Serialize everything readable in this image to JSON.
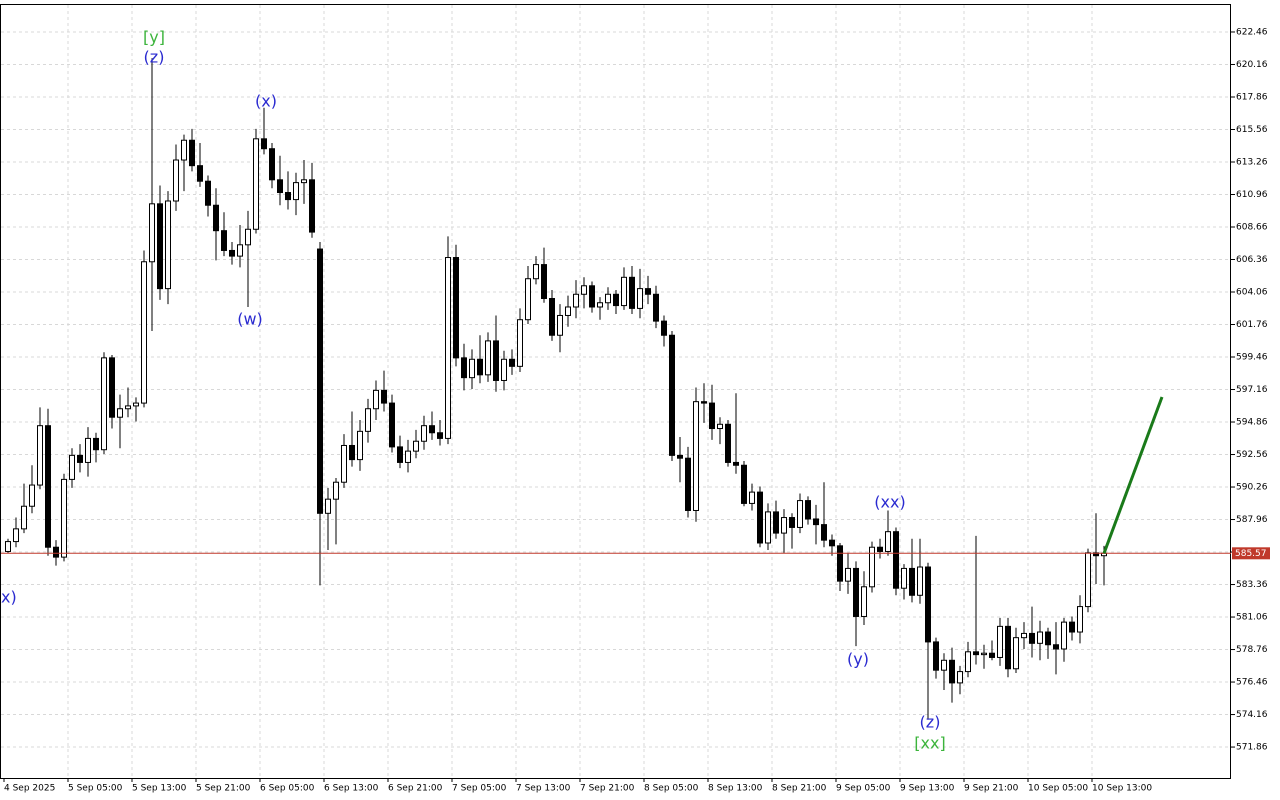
{
  "chart_data": {
    "type": "candlestick",
    "categories": [
      "4 Sep 2025",
      null,
      null,
      null,
      null,
      null,
      null,
      null,
      "5 Sep 05:00",
      null,
      null,
      null,
      null,
      null,
      null,
      null,
      "5 Sep 13:00",
      null,
      null,
      null,
      null,
      null,
      null,
      null,
      "5 Sep 21:00",
      null,
      null,
      null,
      null,
      null,
      null,
      null,
      "6 Sep 05:00",
      null,
      null,
      null,
      null,
      null,
      null,
      null,
      "6 Sep 13:00",
      null,
      null,
      null,
      null,
      null,
      null,
      null,
      "6 Sep 21:00",
      null,
      null,
      null,
      null,
      null,
      null,
      null,
      "7 Sep 05:00",
      null,
      null,
      null,
      null,
      null,
      null,
      null,
      "7 Sep 13:00",
      null,
      null,
      null,
      null,
      null,
      null,
      null,
      "7 Sep 21:00",
      null,
      null,
      null,
      null,
      null,
      null,
      null,
      "8 Sep 05:00",
      null,
      null,
      null,
      null,
      null,
      null,
      null,
      "8 Sep 13:00",
      null,
      null,
      null,
      null,
      null,
      null,
      null,
      "8 Sep 21:00",
      null,
      null,
      null,
      null,
      null,
      null,
      null,
      "9 Sep 05:00",
      null,
      null,
      null,
      null,
      null,
      null,
      null,
      "9 Sep 13:00",
      null,
      null,
      null,
      null,
      null,
      null,
      null,
      "9 Sep 21:00",
      null,
      null,
      null,
      null,
      null,
      null,
      null,
      "10 Sep 05:00",
      null,
      null,
      null,
      null,
      null,
      null,
      null,
      "10 Sep 13:00",
      null
    ],
    "open": [
      585.7,
      586.4,
      587.3,
      588.9,
      590.4,
      594.6,
      586.0,
      585.3,
      590.8,
      592.5,
      592.0,
      593.7,
      592.9,
      599.4,
      595.2,
      595.8,
      596.0,
      596.2,
      606.2,
      610.3,
      604.3,
      610.5,
      613.4,
      614.8,
      613.0,
      611.9,
      610.2,
      608.4,
      607.0,
      606.6,
      607.4,
      608.5,
      614.9,
      614.2,
      612.0,
      611.1,
      610.6,
      611.8,
      612.0,
      607.1,
      588.4,
      589.4,
      590.6,
      593.2,
      592.2,
      594.2,
      595.8,
      597.1,
      596.2,
      593.1,
      592.0,
      592.8,
      593.5,
      594.6,
      594.1,
      593.7,
      606.5,
      599.4,
      598.0,
      599.3,
      598.2,
      600.6,
      597.8,
      599.3,
      598.8,
      602.1,
      605.0,
      606.0,
      603.6,
      601.0,
      602.4,
      603.0,
      603.9,
      604.5,
      603.0,
      603.3,
      603.9,
      603.1,
      605.1,
      602.9,
      604.3,
      603.9,
      602.0,
      601.0,
      592.5,
      592.3,
      588.6,
      596.3,
      596.2,
      594.4,
      594.7,
      592.0,
      591.8,
      589.1,
      589.9,
      586.3,
      588.5,
      587.0,
      588.1,
      587.4,
      589.3,
      588.0,
      587.6,
      586.5,
      586.1,
      583.6,
      584.5,
      581.1,
      583.2,
      586.0,
      585.7,
      587.1,
      583.1,
      584.5,
      582.6,
      584.6,
      579.3,
      577.3,
      578.0,
      576.4,
      577.2,
      578.6,
      578.4,
      578.5,
      578.2,
      580.4,
      577.4,
      579.6,
      579.9,
      579.2,
      580.0,
      579.1,
      578.8,
      580.7,
      580.0,
      581.8,
      585.6,
      585.4
    ],
    "high": [
      586.6,
      588.1,
      590.5,
      591.8,
      595.9,
      595.8,
      586.5,
      591.2,
      593.0,
      593.3,
      594.5,
      594.1,
      599.8,
      599.6,
      596.8,
      597.3,
      596.6,
      607.0,
      620.6,
      611.6,
      611.2,
      614.5,
      615.2,
      615.6,
      614.6,
      612.3,
      611.4,
      609.7,
      607.6,
      608.8,
      609.8,
      615.6,
      617.1,
      614.6,
      613.7,
      612.6,
      612.5,
      613.4,
      613.2,
      607.6,
      590.2,
      590.9,
      594.0,
      595.6,
      595.0,
      596.5,
      597.8,
      598.5,
      596.8,
      593.9,
      593.6,
      594.3,
      595.3,
      595.6,
      595.0,
      608.0,
      607.4,
      600.4,
      600.0,
      601.0,
      601.2,
      602.4,
      599.9,
      600.0,
      602.9,
      605.9,
      606.6,
      607.2,
      604.2,
      603.2,
      603.8,
      604.9,
      605.1,
      604.8,
      603.7,
      604.4,
      604.2,
      605.8,
      605.9,
      605.7,
      605.2,
      604.5,
      602.4,
      601.3,
      593.8,
      593.1,
      597.3,
      597.6,
      597.5,
      595.2,
      595.0,
      596.9,
      592.1,
      590.5,
      590.3,
      589.1,
      589.3,
      588.7,
      588.4,
      589.8,
      589.6,
      589.0,
      590.6,
      586.9,
      586.3,
      585.6,
      585.0,
      584.3,
      586.4,
      586.6,
      588.6,
      587.4,
      584.8,
      586.6,
      586.6,
      584.9,
      579.6,
      578.5,
      578.9,
      577.6,
      579.3,
      586.8,
      579.1,
      579.4,
      581.0,
      581.0,
      580.3,
      580.7,
      581.8,
      580.8,
      580.3,
      580.7,
      581.0,
      581.1,
      582.6,
      585.9,
      588.4,
      586.1
    ],
    "low": [
      585.6,
      586.0,
      587.0,
      588.4,
      590.1,
      585.4,
      584.7,
      585.0,
      590.2,
      591.3,
      591.0,
      592.0,
      592.6,
      594.4,
      593.0,
      595.2,
      594.9,
      595.9,
      601.3,
      603.5,
      603.2,
      609.8,
      611.2,
      612.6,
      611.5,
      609.4,
      606.3,
      606.6,
      606.0,
      605.8,
      603.0,
      608.2,
      613.8,
      611.4,
      610.2,
      609.9,
      609.5,
      610.3,
      607.9,
      583.3,
      585.8,
      586.2,
      590.2,
      591.7,
      591.4,
      593.4,
      595.0,
      595.6,
      592.7,
      591.6,
      591.3,
      592.3,
      592.9,
      593.6,
      593.2,
      593.3,
      598.8,
      597.1,
      597.2,
      597.6,
      597.7,
      597.0,
      597.1,
      598.2,
      598.4,
      601.8,
      604.6,
      603.3,
      600.6,
      599.8,
      601.6,
      602.2,
      602.9,
      602.6,
      602.1,
      602.8,
      602.5,
      602.8,
      602.5,
      602.2,
      603.2,
      601.5,
      600.2,
      592.1,
      590.6,
      588.1,
      587.8,
      594.8,
      593.6,
      593.3,
      591.7,
      591.2,
      588.9,
      588.6,
      586.0,
      585.8,
      586.6,
      585.6,
      585.9,
      587.0,
      587.6,
      586.2,
      586.0,
      585.4,
      582.9,
      582.7,
      579.0,
      580.5,
      582.8,
      585.2,
      585.4,
      582.6,
      582.3,
      582.1,
      582.0,
      573.8,
      576.7,
      575.9,
      575.0,
      575.6,
      576.8,
      577.7,
      577.4,
      578.0,
      577.6,
      576.8,
      577.1,
      578.8,
      578.2,
      578.0,
      578.1,
      577.0,
      577.9,
      579.4,
      579.2,
      581.4,
      583.4,
      583.3
    ],
    "close": [
      586.4,
      587.3,
      588.9,
      590.4,
      594.6,
      586.0,
      585.3,
      590.8,
      592.5,
      592.0,
      593.7,
      592.9,
      599.4,
      595.2,
      595.8,
      596.0,
      596.2,
      606.2,
      610.3,
      604.3,
      610.5,
      613.4,
      614.8,
      613.0,
      611.9,
      610.2,
      608.4,
      607.0,
      606.6,
      607.4,
      608.5,
      614.9,
      614.2,
      612.0,
      611.1,
      610.6,
      611.8,
      612.0,
      608.3,
      588.4,
      589.4,
      590.6,
      593.2,
      592.2,
      594.2,
      595.8,
      597.1,
      596.2,
      593.1,
      592.0,
      592.8,
      593.5,
      594.6,
      594.1,
      593.7,
      606.5,
      599.4,
      598.0,
      599.3,
      598.2,
      600.6,
      597.8,
      599.3,
      598.8,
      602.1,
      605.0,
      606.0,
      603.6,
      601.0,
      602.4,
      603.0,
      603.9,
      604.5,
      603.0,
      603.3,
      603.9,
      603.1,
      605.1,
      602.9,
      604.3,
      603.9,
      602.0,
      601.0,
      592.5,
      592.3,
      588.6,
      596.3,
      596.2,
      594.4,
      594.7,
      592.0,
      591.8,
      589.1,
      589.9,
      586.3,
      588.5,
      587.0,
      588.1,
      587.4,
      589.3,
      588.0,
      587.6,
      586.5,
      586.1,
      583.6,
      584.5,
      581.1,
      583.2,
      586.0,
      585.7,
      587.1,
      583.1,
      584.5,
      582.6,
      584.6,
      579.3,
      577.3,
      578.0,
      576.4,
      577.2,
      578.6,
      578.4,
      578.5,
      578.2,
      580.4,
      577.4,
      579.6,
      579.9,
      579.2,
      580.0,
      579.1,
      578.8,
      580.7,
      580.0,
      581.8,
      585.6,
      585.4,
      585.57
    ],
    "ylim": [
      569.67,
      624.44
    ],
    "yticks": [
      622.46,
      620.16,
      617.86,
      615.56,
      613.26,
      610.96,
      608.66,
      606.36,
      604.06,
      601.76,
      599.46,
      597.16,
      594.86,
      592.56,
      590.26,
      587.96,
      585.66,
      583.36,
      581.06,
      578.76,
      576.46,
      574.16,
      571.86
    ],
    "grid": true,
    "up_color": "#ffffff",
    "down_color": "#000000",
    "last_price": 585.57,
    "last_price_color": "#c0392b",
    "projection_color": "#1a7a1a",
    "annotations": [
      {
        "text": "[y]",
        "color": "#3cb43c"
      },
      {
        "text": "(z)",
        "color": "#2a2ad0"
      },
      {
        "text": "(x)",
        "color": "#2a2ad0"
      },
      {
        "text": "(w)",
        "color": "#2a2ad0"
      },
      {
        "text": "(xx)",
        "color": "#2a2ad0"
      },
      {
        "text": "(y)",
        "color": "#2a2ad0"
      },
      {
        "text": "(z)",
        "color": "#2a2ad0"
      },
      {
        "text": "[xx]",
        "color": "#3cb43c"
      },
      {
        "text": "x)",
        "color": "#2a2ad0"
      }
    ]
  }
}
